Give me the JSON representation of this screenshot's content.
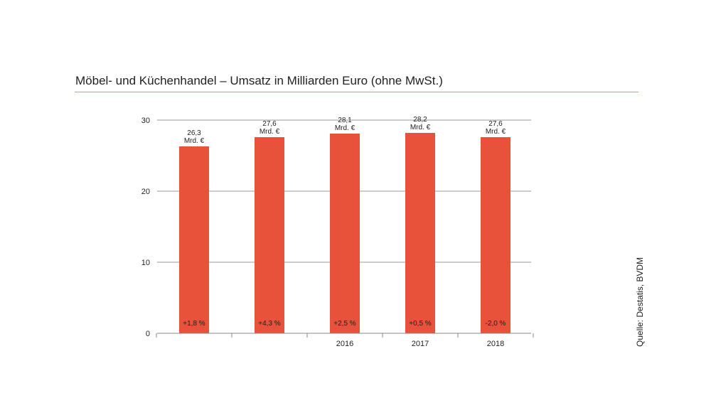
{
  "title": "Möbel- und Küchenhandel – Umsatz in Milliarden Euro (ohne MwSt.)",
  "source": "Quelle: Destatis, BVDM",
  "colors": {
    "bar": "#e8513a",
    "accent_rule": "#f0a024",
    "grid": "#9a9a9a",
    "axis": "#888888"
  },
  "chart_data": {
    "type": "bar",
    "categories": [
      "",
      "",
      "2016",
      "2017",
      "2018"
    ],
    "values": [
      26.3,
      27.6,
      28.1,
      28.2,
      27.6
    ],
    "value_labels": [
      "26,3",
      "27,6",
      "28,1",
      "28,2",
      "27,6"
    ],
    "unit_label": "Mrd. €",
    "change_labels": [
      "+1,8 %",
      "+4,3 %",
      "+2,5 %",
      "+0,5 %",
      "-2,0 %"
    ],
    "yticks": [
      0,
      10,
      20,
      30
    ],
    "ylim": [
      0,
      30
    ],
    "grid": true,
    "legend": "none"
  }
}
